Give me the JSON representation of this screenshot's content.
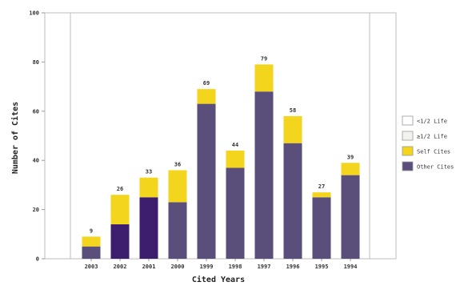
{
  "chart_data": {
    "type": "bar",
    "stacked": true,
    "categories": [
      "2003",
      "2002",
      "2001",
      "2000",
      "1999",
      "1998",
      "1997",
      "1996",
      "1995",
      "1994"
    ],
    "series": [
      {
        "name": "Other Cites",
        "values": [
          5,
          14,
          25,
          23,
          63,
          37,
          68,
          47,
          25,
          34
        ],
        "colors": [
          "#5a4e7a",
          "#3d1d6e",
          "#3d1d6e",
          "#5a4e7a",
          "#5a4e7a",
          "#5a4e7a",
          "#5a4e7a",
          "#5a4e7a",
          "#5a4e7a",
          "#5a4e7a"
        ]
      },
      {
        "name": "Self Cites",
        "values": [
          4,
          12,
          8,
          13,
          6,
          7,
          11,
          11,
          2,
          5
        ],
        "color": "#f2d51c"
      }
    ],
    "totals": [
      "9",
      "26",
      "33",
      "36",
      "69",
      "44",
      "79",
      "58",
      "27",
      "39"
    ],
    "ylabel": "Number of Cites",
    "xlabel": "Cited Years",
    "ylim": [
      0,
      100
    ],
    "yticks": [
      "0",
      "20",
      "40",
      "60",
      "80",
      "100"
    ],
    "grid": false,
    "legend": {
      "position": "right",
      "items": [
        {
          "label": "<1/2 Life",
          "color": "#ffffff"
        },
        {
          "label": "≥1/2 Life",
          "color": "#f4f2ec"
        },
        {
          "label": "Self Cites",
          "color": "#f2d51c"
        },
        {
          "label": "Other Cites",
          "color": "#5a4e7a"
        }
      ]
    }
  }
}
